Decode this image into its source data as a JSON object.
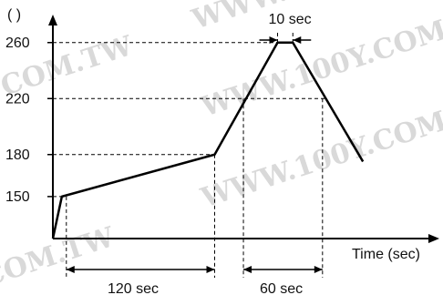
{
  "chart_data": {
    "type": "line",
    "y_unit_label": "( )",
    "xlabel": "Time (sec)",
    "ylim": [
      120,
      280
    ],
    "xlim": [
      0,
      430
    ],
    "y_ticks": [
      150,
      180,
      220,
      260
    ],
    "series": [
      {
        "points": [
          {
            "x": 0,
            "y": 120
          },
          {
            "x": 10,
            "y": 150
          },
          {
            "x": 180,
            "y": 180
          },
          {
            "x": 250,
            "y": 260
          },
          {
            "x": 267,
            "y": 260
          },
          {
            "x": 345,
            "y": 175
          }
        ]
      }
    ],
    "annotations": {
      "seg_120": {
        "label": "120 sec",
        "x_from": 15,
        "x_to": 180
      },
      "seg_60": {
        "label": "60 sec",
        "x_from": 212,
        "x_to": 300
      },
      "seg_10": {
        "label": "10 sec",
        "x_from": 250,
        "x_to": 267
      }
    },
    "grid": false,
    "legend": "none"
  },
  "watermark": {
    "text": "WWW.100Y.COM.TW",
    "text_short": "COM.TW"
  },
  "colors": {
    "line": "#000000",
    "watermark": "#d9d9d9"
  }
}
